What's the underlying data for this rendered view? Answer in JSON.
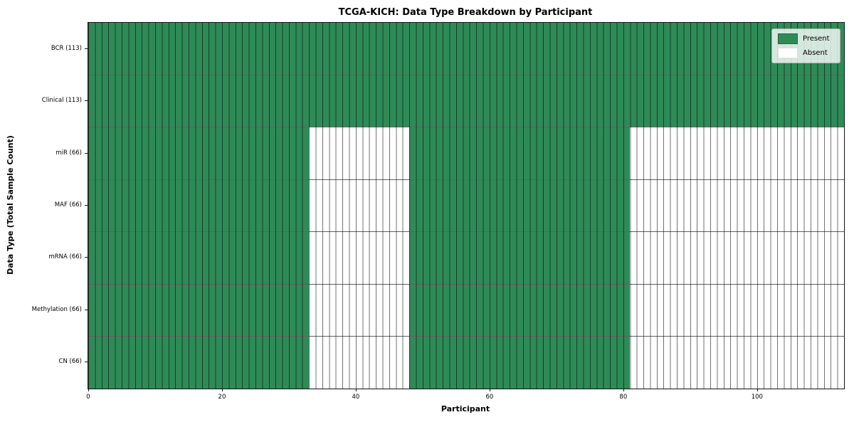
{
  "chart_data": {
    "type": "heatmap",
    "title": "TCGA-KICH: Data Type Breakdown by Participant",
    "xlabel": "Participant",
    "ylabel": "Data Type (Total Sample Count)",
    "x_range": [
      0,
      113
    ],
    "x_ticks": [
      0,
      20,
      40,
      60,
      80,
      100
    ],
    "grid": true,
    "legend_position": "upper right",
    "colors": {
      "present": "#2E8B57",
      "absent": "#ffffff"
    },
    "rows": [
      {
        "label": "BCR (113)",
        "data_type": "BCR",
        "count": 113,
        "present_runs": [
          [
            0,
            113
          ]
        ]
      },
      {
        "label": "Clinical (113)",
        "data_type": "Clinical",
        "count": 113,
        "present_runs": [
          [
            0,
            113
          ]
        ]
      },
      {
        "label": "miR (66)",
        "data_type": "miR",
        "count": 66,
        "present_runs": [
          [
            0,
            33
          ],
          [
            48,
            81
          ]
        ]
      },
      {
        "label": "MAF (66)",
        "data_type": "MAF",
        "count": 66,
        "present_runs": [
          [
            0,
            33
          ],
          [
            48,
            81
          ]
        ]
      },
      {
        "label": "mRNA (66)",
        "data_type": "mRNA",
        "count": 66,
        "present_runs": [
          [
            0,
            33
          ],
          [
            48,
            81
          ]
        ]
      },
      {
        "label": "Methylation (66)",
        "data_type": "Methylation",
        "count": 66,
        "present_runs": [
          [
            0,
            33
          ],
          [
            48,
            81
          ]
        ]
      },
      {
        "label": "CN (66)",
        "data_type": "CN",
        "count": 66,
        "present_runs": [
          [
            0,
            33
          ],
          [
            48,
            81
          ]
        ]
      }
    ],
    "legend": [
      {
        "label": "Present",
        "color": "#2E8B57"
      },
      {
        "label": "Absent",
        "color": "#ffffff"
      }
    ]
  }
}
